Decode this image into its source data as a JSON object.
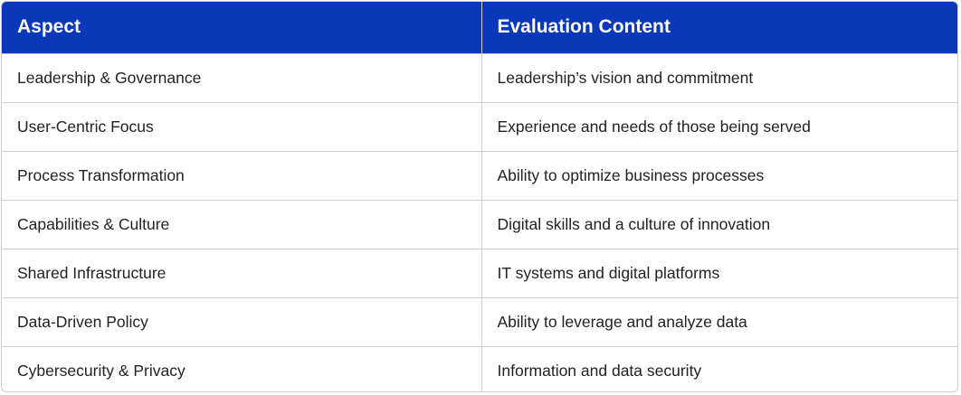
{
  "table": {
    "headers": [
      "Aspect",
      "Evaluation Content"
    ],
    "rows": [
      [
        "Leadership & Governance",
        "Leadership’s vision and commitment"
      ],
      [
        "User-Centric Focus",
        "Experience and needs of those being served"
      ],
      [
        "Process Transformation",
        "Ability to optimize business processes"
      ],
      [
        "Capabilities & Culture",
        "Digital skills and a culture of innovation"
      ],
      [
        "Shared Infrastructure",
        "IT systems and digital platforms"
      ],
      [
        "Data-Driven Policy",
        "Ability to leverage and analyze data"
      ],
      [
        "Cybersecurity & Privacy",
        "Information and data security"
      ]
    ]
  },
  "colors": {
    "header_background": "#0b38b8",
    "header_text": "#ffffff",
    "border": "#cfcfcf",
    "body_text": "#222222"
  }
}
